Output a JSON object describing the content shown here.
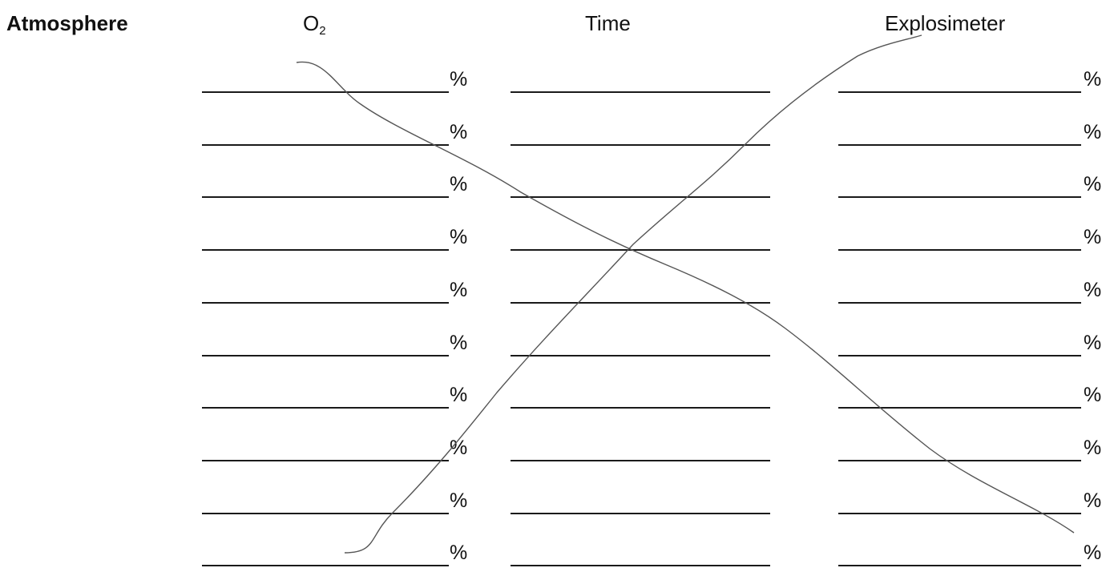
{
  "form": {
    "section_label": "Atmosphere",
    "columns": {
      "o2": {
        "main": "O",
        "subscript": "2"
      },
      "time": "Time",
      "explosimeter": "Explosimeter"
    },
    "unit_symbol": "%",
    "row_count": 10
  }
}
